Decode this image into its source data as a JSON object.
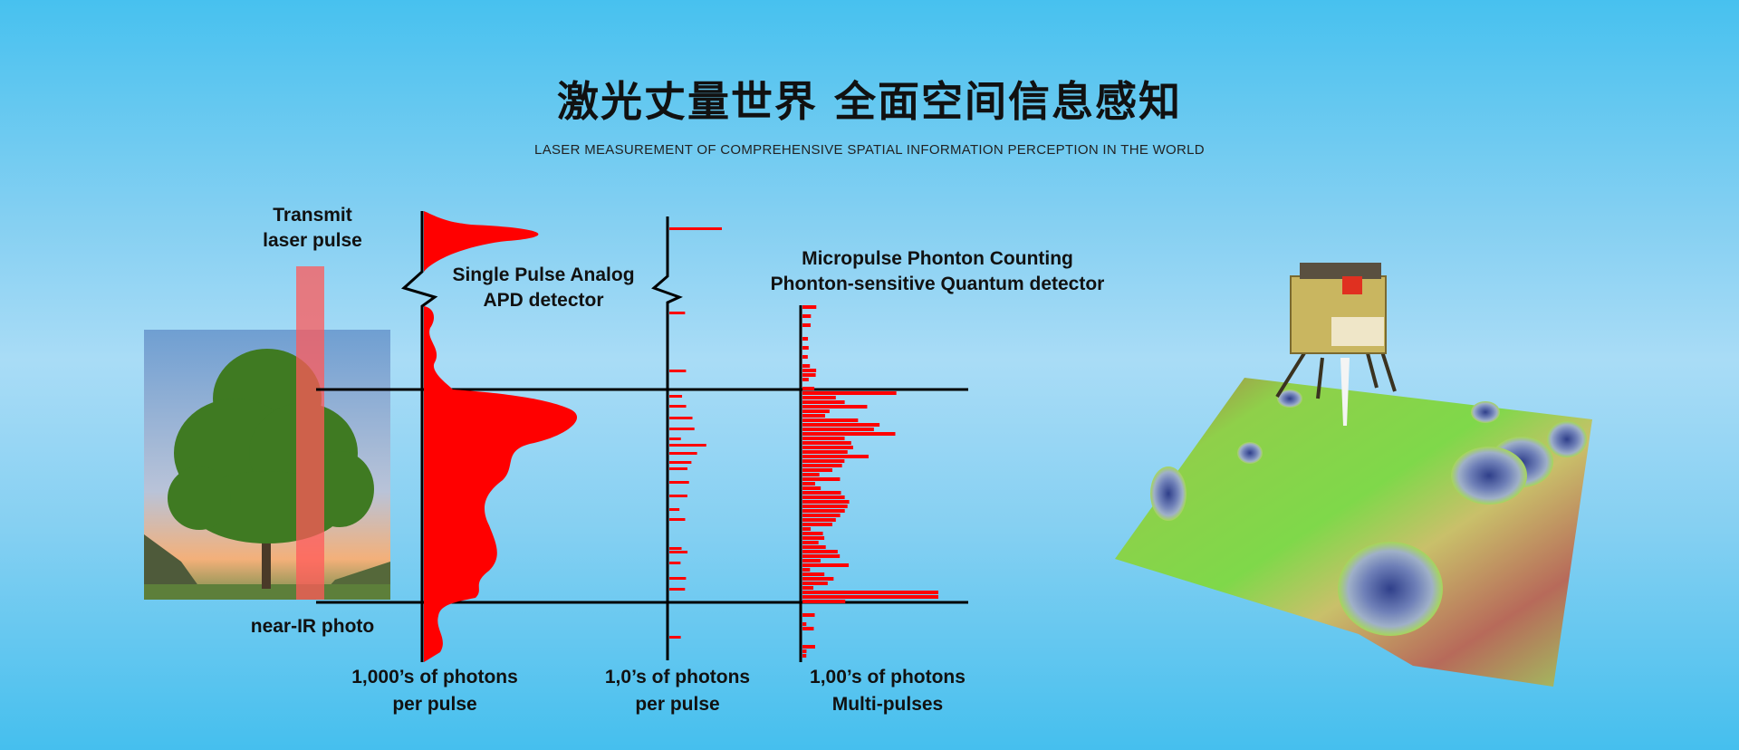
{
  "header": {
    "title": "激光丈量世界 全面空间信息感知",
    "subtitle": "LASER MEASUREMENT OF COMPREHENSIVE SPATIAL INFORMATION PERCEPTION IN THE WORLD"
  },
  "diagram": {
    "transmit_label": [
      "Transmit",
      "laser pulse"
    ],
    "photo_label": "near-IR photo",
    "analog_label": [
      "Single Pulse Analog",
      "APD detector"
    ],
    "counting_label": [
      "Micropulse Phonton Counting",
      "Phonton-sensitive Quantum detector"
    ],
    "axis_labels": [
      [
        "1,000’s of photons",
        "per pulse"
      ],
      [
        "1,0’s of photons",
        "per pulse"
      ],
      [
        "1,00’s of photons",
        "Multi-pulses"
      ]
    ],
    "colors": {
      "signal": "#ff0000",
      "laser_beam": "#ff5a5a",
      "axis": "#000000"
    }
  }
}
